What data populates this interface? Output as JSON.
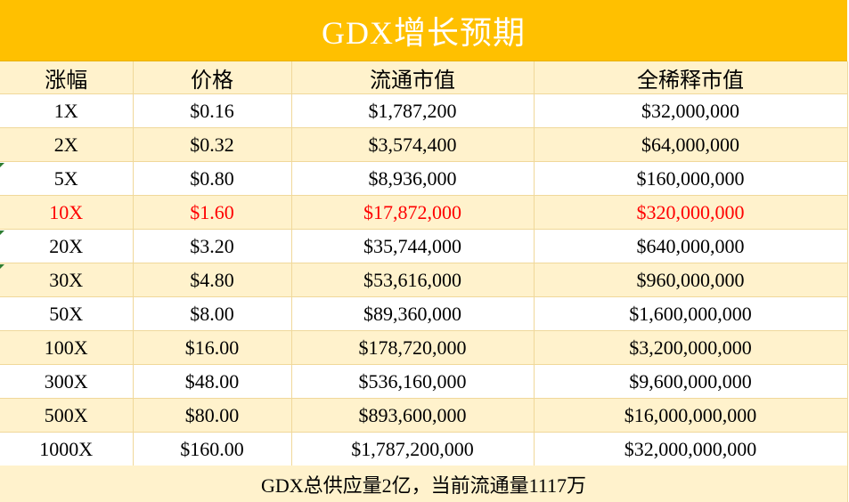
{
  "title": "GDX增长预期",
  "headers": [
    "涨幅",
    "价格",
    "流通市值",
    "全稀释市值"
  ],
  "rows": [
    [
      "1X",
      "$0.16",
      "$1,787,200",
      "$32,000,000"
    ],
    [
      "2X",
      "$0.32",
      "$3,574,400",
      "$64,000,000"
    ],
    [
      "5X",
      "$0.80",
      "$8,936,000",
      "$160,000,000"
    ],
    [
      "10X",
      "$1.60",
      "$17,872,000",
      "$320,000,000"
    ],
    [
      "20X",
      "$3.20",
      "$35,744,000",
      "$640,000,000"
    ],
    [
      "30X",
      "$4.80",
      "$53,616,000",
      "$960,000,000"
    ],
    [
      "50X",
      "$8.00",
      "$89,360,000",
      "$1,600,000,000"
    ],
    [
      "100X",
      "$16.00",
      "$178,720,000",
      "$3,200,000,000"
    ],
    [
      "300X",
      "$48.00",
      "$536,160,000",
      "$9,600,000,000"
    ],
    [
      "500X",
      "$80.00",
      "$893,600,000",
      "$16,000,000,000"
    ],
    [
      "1000X",
      "$160.00",
      "$1,787,200,000",
      "$32,000,000,000"
    ]
  ],
  "highlight_row": "10X",
  "footer": "GDX总供应量2亿，当前流通量1117万",
  "colors": {
    "title_bg": "#ffc000",
    "title_text": "#ffffff",
    "band": "#fff2cc",
    "highlight_text": "#ff0000"
  }
}
